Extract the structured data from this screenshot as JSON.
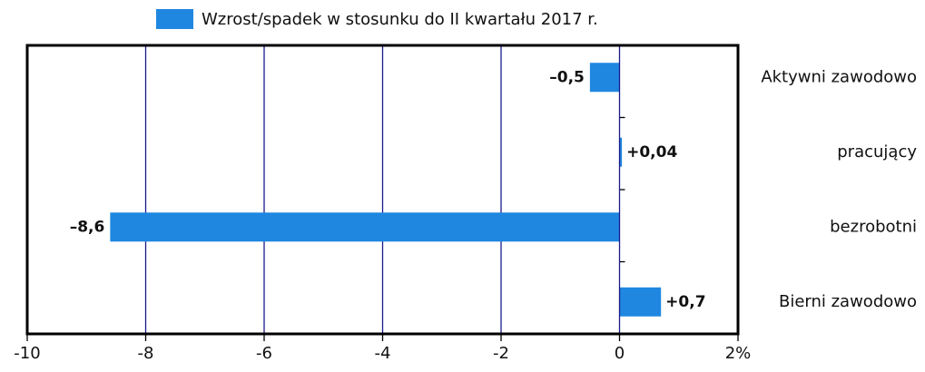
{
  "chart_data": {
    "type": "hbar",
    "categories": [
      "Aktywni zawodowo",
      "pracujący",
      "bezrobotni",
      "Bierni zawodowo"
    ],
    "series": [
      {
        "name": "Wzrost/spadek w stosunku do II kwartału 2017 r.",
        "color": "#1f87e0",
        "values": [
          -0.5,
          0.04,
          -8.6,
          0.7
        ],
        "value_labels": [
          "–0,5",
          "+0,04",
          "–8,6",
          "+0,7"
        ]
      }
    ],
    "xlim": [
      -10,
      2
    ],
    "xticks": [
      -10,
      -8,
      -6,
      -4,
      -2,
      0,
      {
        "value": 2,
        "label": "2%"
      }
    ],
    "grid": true,
    "legend": "top"
  }
}
